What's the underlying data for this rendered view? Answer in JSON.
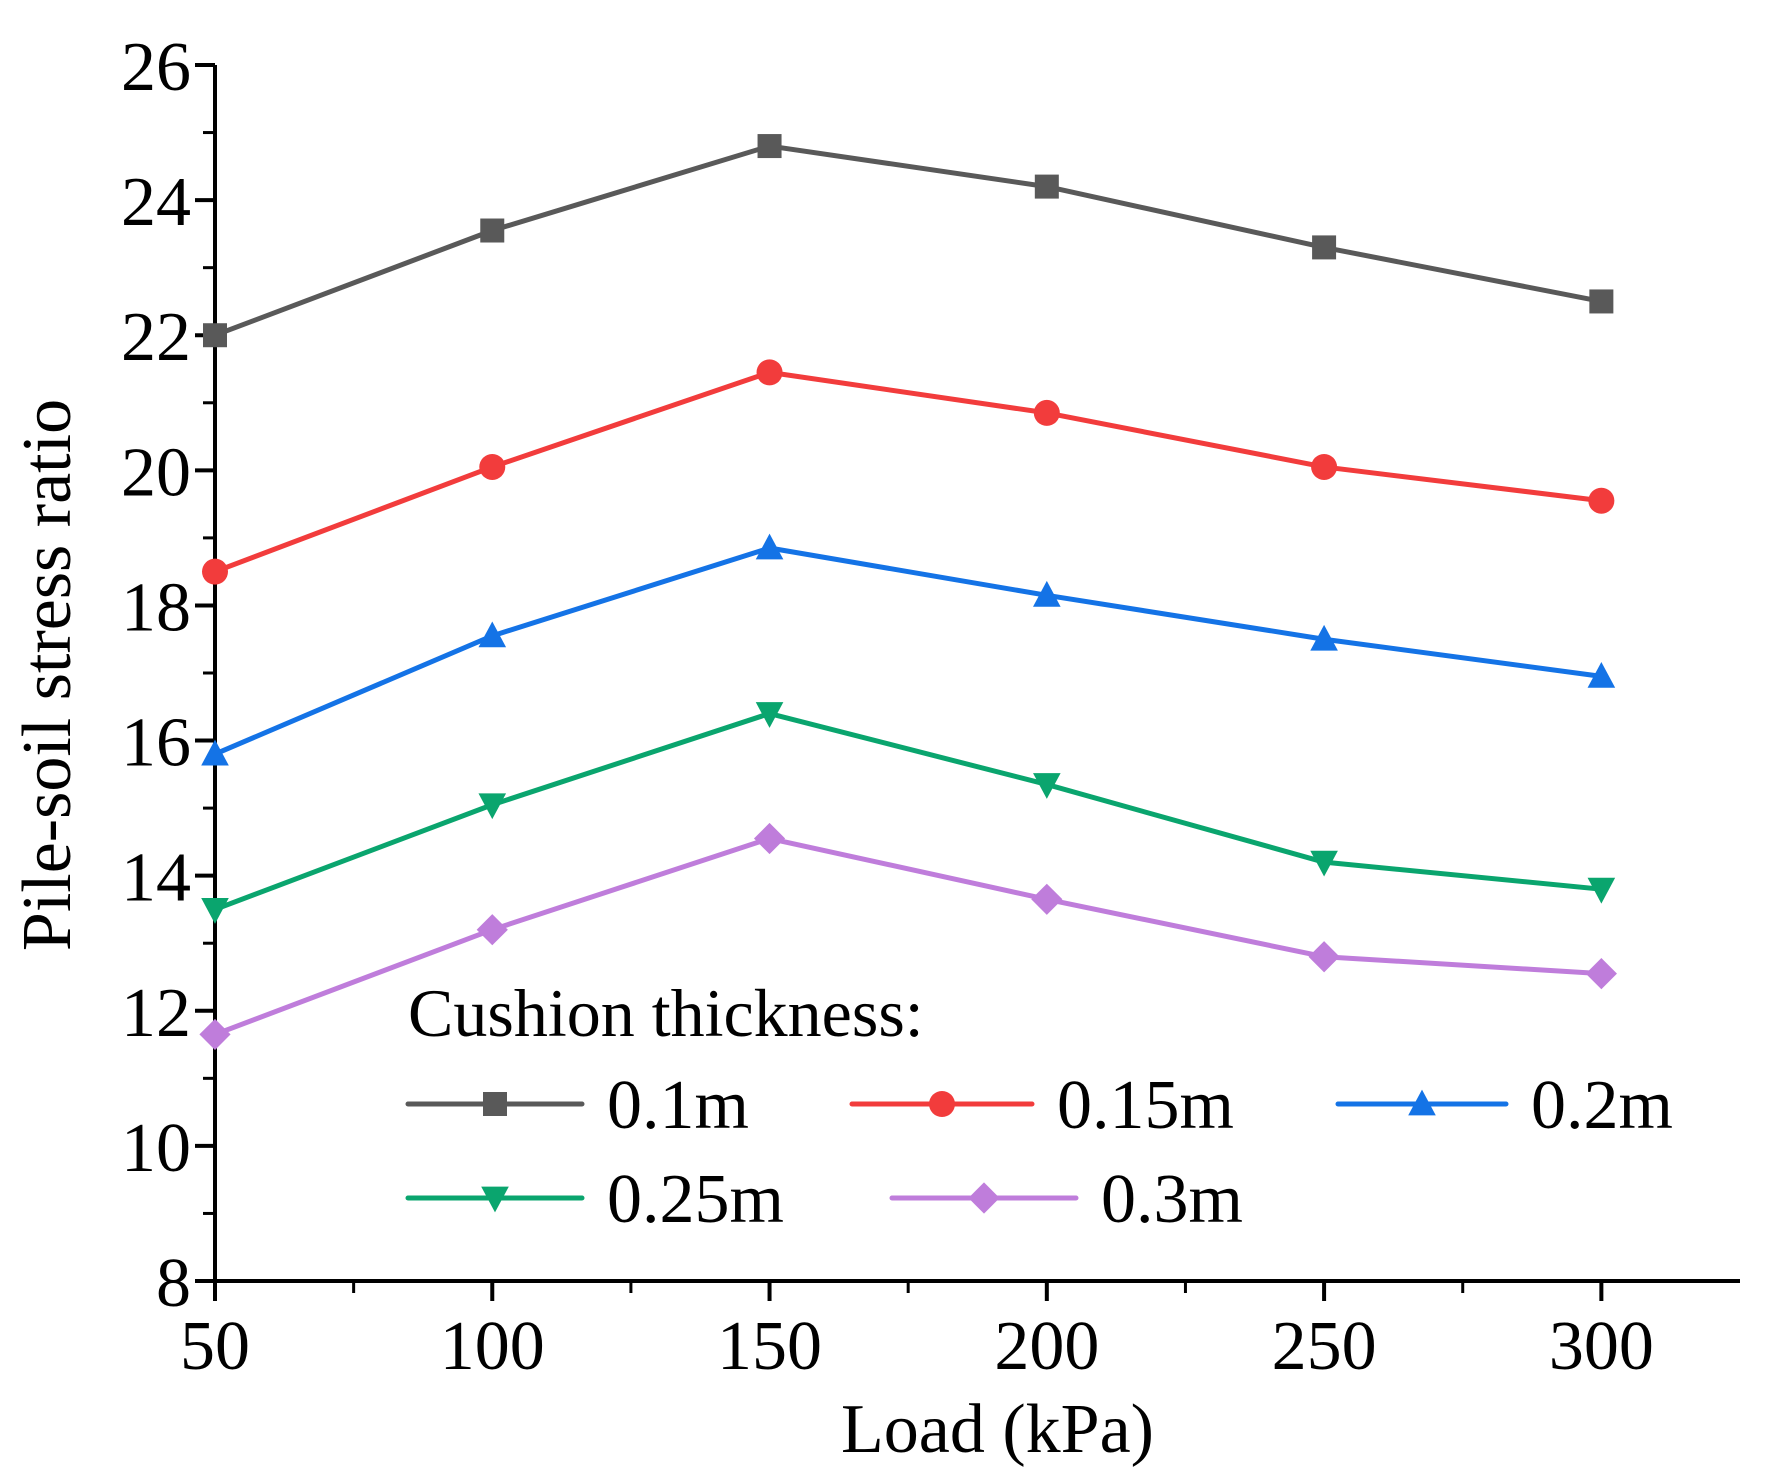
{
  "chart_data": {
    "type": "line",
    "title": "",
    "xlabel": "Load (kPa)",
    "ylabel": "Pile-soil stress ratio",
    "x": [
      50,
      100,
      150,
      200,
      250,
      300
    ],
    "xlim": [
      50,
      325
    ],
    "ylim": [
      8,
      26
    ],
    "xticks": [
      50,
      100,
      150,
      200,
      250,
      300
    ],
    "yticks": [
      8,
      10,
      12,
      14,
      16,
      18,
      20,
      22,
      24,
      26
    ],
    "grid": false,
    "legend": {
      "title": "Cushion thickness:",
      "position": "bottom-right"
    },
    "series": [
      {
        "name": "0.1m",
        "marker": "square",
        "color": "#595959",
        "values": [
          22.0,
          23.55,
          24.8,
          24.2,
          23.3,
          22.5
        ]
      },
      {
        "name": "0.15m",
        "marker": "circle",
        "color": "#f23c3c",
        "values": [
          18.5,
          20.05,
          21.45,
          20.85,
          20.05,
          19.55
        ]
      },
      {
        "name": "0.2m",
        "marker": "triangle-up",
        "color": "#1473e6",
        "values": [
          15.8,
          17.55,
          18.85,
          18.15,
          17.5,
          16.95
        ]
      },
      {
        "name": "0.25m",
        "marker": "triangle-down",
        "color": "#0aa56e",
        "values": [
          13.5,
          15.05,
          16.4,
          15.35,
          14.2,
          13.8
        ]
      },
      {
        "name": "0.3m",
        "marker": "diamond",
        "color": "#bf7ddb",
        "values": [
          11.65,
          13.2,
          14.55,
          13.65,
          12.8,
          12.55
        ]
      }
    ]
  }
}
